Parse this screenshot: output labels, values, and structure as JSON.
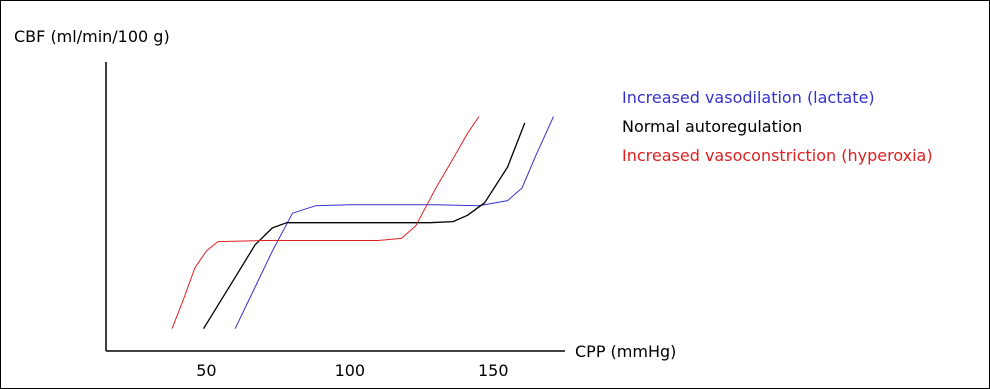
{
  "chart_data": {
    "type": "line",
    "title": "",
    "ylabel": "CBF (ml/min/100 g)",
    "xlabel": "CPP (mmHg)",
    "xticks": [
      50,
      100,
      150
    ],
    "xlim": [
      15,
      175
    ],
    "ylim": [
      0,
      100
    ],
    "legend_position": "top-right",
    "series": [
      {
        "name": "Increased vasodilation (lactate)",
        "color": "#3333cc",
        "x": [
          60,
          66,
          73,
          80,
          88,
          100,
          115,
          130,
          145,
          155,
          160,
          165,
          171
        ],
        "y": [
          3,
          20,
          40,
          58,
          61.5,
          62,
          62,
          62,
          61.5,
          64,
          70,
          86,
          104
        ]
      },
      {
        "name": "Normal autoregulation",
        "color": "#000000",
        "x": [
          49,
          58,
          67,
          73,
          78,
          90,
          110,
          128,
          136,
          141,
          147,
          155,
          161
        ],
        "y": [
          3,
          23,
          43,
          51,
          53.5,
          53.5,
          53.5,
          53.5,
          54,
          57,
          63,
          80,
          101
        ]
      },
      {
        "name": "Increased vasoconstriction (hyperoxia)",
        "color": "#e02020",
        "x": [
          38,
          42,
          46,
          50,
          54,
          70,
          90,
          110,
          118,
          123,
          130,
          136,
          141,
          145
        ],
        "y": [
          3,
          17,
          32,
          40,
          44.5,
          45,
          45,
          45,
          46,
          52,
          70,
          84,
          96,
          104
        ]
      }
    ]
  }
}
